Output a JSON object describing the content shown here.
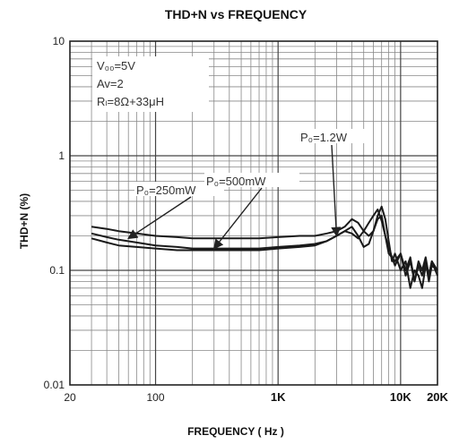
{
  "title": "THD+N vs FREQUENCY",
  "conditions": [
    "V₀₀=5V",
    "Av=2",
    "Rₗ=8Ω+33μH"
  ],
  "chart_data": {
    "type": "line",
    "title": "THD+N vs FREQUENCY",
    "xlabel": "FREQUENCY ( Hz )",
    "ylabel": "THD+N (%)",
    "x_scale": "log",
    "y_scale": "log",
    "xlim": [
      20,
      20000
    ],
    "ylim": [
      0.01,
      10
    ],
    "grid": true,
    "x_ticks": [
      {
        "value": 20,
        "label": "20"
      },
      {
        "value": 100,
        "label": "100"
      },
      {
        "value": 1000,
        "label": "1K"
      },
      {
        "value": 10000,
        "label": "10K"
      },
      {
        "value": 20000,
        "label": "20K"
      }
    ],
    "y_ticks": [
      {
        "value": 10,
        "label": "10"
      },
      {
        "value": 1,
        "label": "1"
      },
      {
        "value": 0.1,
        "label": "0.1"
      },
      {
        "value": 0.01,
        "label": "0.01"
      }
    ],
    "annotations": [
      {
        "text": "P₀=250mW",
        "series": 0
      },
      {
        "text": "P₀=500mW",
        "series": 1
      },
      {
        "text": "P₀=1.2W",
        "series": 2
      }
    ],
    "series": [
      {
        "x": [
          30,
          40,
          50,
          70,
          100,
          150,
          200,
          300,
          500,
          700,
          1000,
          1500,
          2000,
          2500,
          3000,
          3500,
          4000,
          4500,
          5000,
          5500,
          6000,
          6500,
          7000,
          7500,
          8000,
          9000,
          10000,
          11000,
          12000,
          13000,
          14000,
          15000,
          16000,
          17000,
          18000,
          20000
        ],
        "y": [
          0.24,
          0.23,
          0.22,
          0.21,
          0.2,
          0.195,
          0.19,
          0.19,
          0.19,
          0.19,
          0.195,
          0.2,
          0.2,
          0.21,
          0.22,
          0.24,
          0.28,
          0.26,
          0.22,
          0.2,
          0.22,
          0.28,
          0.3,
          0.2,
          0.14,
          0.12,
          0.14,
          0.09,
          0.12,
          0.08,
          0.11,
          0.09,
          0.12,
          0.08,
          0.11,
          0.1
        ]
      },
      {
        "x": [
          30,
          40,
          50,
          70,
          100,
          150,
          200,
          300,
          500,
          700,
          1000,
          1500,
          2000,
          2500,
          3000,
          3500,
          4000,
          4500,
          5000,
          5500,
          6000,
          6500,
          7000,
          7500,
          8000,
          8500,
          9000,
          10000,
          11000,
          12000,
          13000,
          14000,
          15000,
          16000,
          17000,
          18000,
          20000
        ],
        "y": [
          0.21,
          0.195,
          0.185,
          0.175,
          0.165,
          0.16,
          0.155,
          0.155,
          0.155,
          0.155,
          0.16,
          0.165,
          0.17,
          0.18,
          0.2,
          0.22,
          0.21,
          0.19,
          0.22,
          0.26,
          0.3,
          0.34,
          0.27,
          0.2,
          0.16,
          0.13,
          0.11,
          0.14,
          0.1,
          0.13,
          0.08,
          0.12,
          0.1,
          0.13,
          0.09,
          0.12,
          0.09
        ]
      },
      {
        "x": [
          30,
          40,
          50,
          70,
          100,
          150,
          200,
          300,
          500,
          700,
          1000,
          1500,
          2000,
          2500,
          3000,
          3500,
          4000,
          4500,
          5000,
          5500,
          6000,
          6500,
          7000,
          7500,
          8000,
          8500,
          9000,
          10000,
          11000,
          12000,
          13000,
          14000,
          15000,
          16000,
          17000,
          18000,
          20000
        ],
        "y": [
          0.19,
          0.175,
          0.165,
          0.16,
          0.155,
          0.15,
          0.15,
          0.15,
          0.15,
          0.15,
          0.155,
          0.16,
          0.165,
          0.18,
          0.2,
          0.22,
          0.24,
          0.2,
          0.16,
          0.17,
          0.22,
          0.3,
          0.36,
          0.28,
          0.18,
          0.12,
          0.14,
          0.1,
          0.12,
          0.07,
          0.1,
          0.09,
          0.07,
          0.11,
          0.09,
          0.12,
          0.1
        ]
      }
    ]
  }
}
